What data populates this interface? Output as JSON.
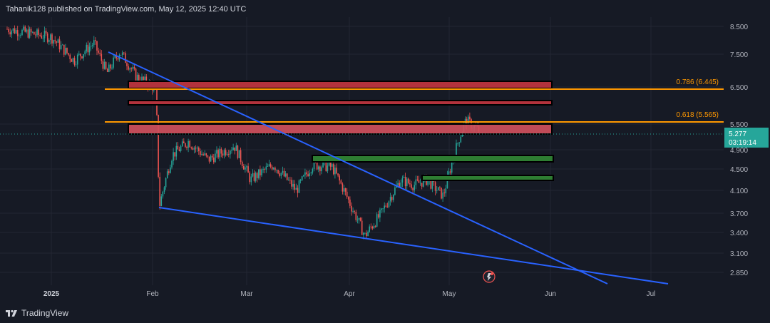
{
  "header": {
    "title": "Tahanik128 published on TradingView.com, May 12, 2025 12:40 UTC"
  },
  "footer": {
    "brand": "TradingView"
  },
  "colors": {
    "background": "#161a25",
    "up": "#26a69a",
    "down": "#ef5350",
    "trendline": "#2962ff",
    "fib": "#ff9800",
    "resistance_zone": "#b2323c",
    "support_zone": "#2e7d32"
  },
  "price_axis": {
    "ticks": [
      "8.500",
      "7.500",
      "6.500",
      "5.500",
      "4.900",
      "4.500",
      "4.100",
      "3.700",
      "3.400",
      "3.100",
      "2.850"
    ],
    "current_price": "5.277",
    "countdown": "03:19:14"
  },
  "time_axis": {
    "ticks": [
      "2025",
      "Feb",
      "Mar",
      "Apr",
      "May",
      "Jun",
      "Jul"
    ]
  },
  "fib_levels": [
    {
      "label": "0.786 (6.445)"
    },
    {
      "label": "0.618 (5.565)"
    }
  ],
  "chart_data": {
    "type": "line",
    "series": [
      {
        "x": [
          "2025-01-01",
          "2025-01-08",
          "2025-01-14",
          "2025-01-18",
          "2025-01-22",
          "2025-01-27",
          "2025-02-02",
          "2025-02-03",
          "2025-02-07",
          "2025-02-12",
          "2025-02-18",
          "2025-02-26",
          "2025-03-03",
          "2025-03-10",
          "2025-03-17",
          "2025-03-22",
          "2025-03-28",
          "2025-04-03",
          "2025-04-07",
          "2025-04-12",
          "2025-04-18",
          "2025-04-22",
          "2025-04-26",
          "2025-05-01",
          "2025-05-06",
          "2025-05-08",
          "2025-05-12"
        ],
        "values": [
          8.1,
          7.3,
          7.9,
          6.9,
          7.6,
          6.8,
          6.45,
          3.8,
          4.8,
          5.1,
          4.7,
          5.0,
          4.3,
          4.6,
          4.1,
          4.6,
          4.55,
          3.8,
          3.35,
          3.7,
          4.3,
          4.2,
          4.3,
          4.0,
          5.2,
          5.6,
          5.35
        ]
      }
    ],
    "ylim": [
      2.75,
      8.7
    ],
    "y_scale": "log"
  }
}
